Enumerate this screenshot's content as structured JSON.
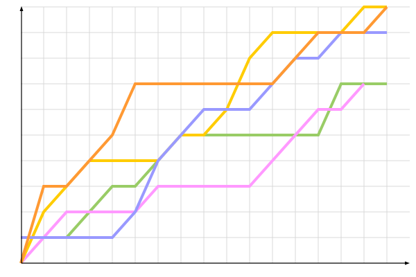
{
  "chart_data": {
    "type": "line",
    "title": "",
    "xlabel": "",
    "ylabel": "",
    "x": [
      0,
      1,
      2,
      3,
      4,
      5,
      6,
      7,
      8,
      9,
      10,
      11,
      12,
      13,
      14,
      15,
      16
    ],
    "xlim": [
      0,
      17
    ],
    "ylim": [
      0,
      10
    ],
    "grid": true,
    "legend": "none",
    "series": [
      {
        "color": "#99cc66",
        "values": [
          null,
          null,
          1,
          2,
          3,
          3,
          4,
          5,
          5,
          5,
          5,
          5,
          5,
          5,
          7,
          7,
          7
        ]
      },
      {
        "color": "#ff99ff",
        "values": [
          0,
          1,
          2,
          2,
          2,
          2,
          3,
          3,
          3,
          3,
          3,
          4,
          5,
          6,
          6,
          7,
          null
        ]
      },
      {
        "color": "#ffcc00",
        "values": [
          0,
          2,
          3,
          4,
          4,
          4,
          4,
          5,
          5,
          6,
          8,
          9,
          9,
          9,
          9,
          10,
          10
        ]
      },
      {
        "color": "#9999ff",
        "values": [
          1,
          1,
          1,
          1,
          1,
          2,
          4,
          5,
          6,
          6,
          6,
          7,
          8,
          8,
          9,
          9,
          9
        ]
      },
      {
        "color": "#ff9933",
        "values": [
          0,
          3,
          3,
          4,
          5,
          7,
          7,
          7,
          7,
          7,
          7,
          7,
          8,
          9,
          9,
          9,
          10
        ]
      }
    ]
  }
}
